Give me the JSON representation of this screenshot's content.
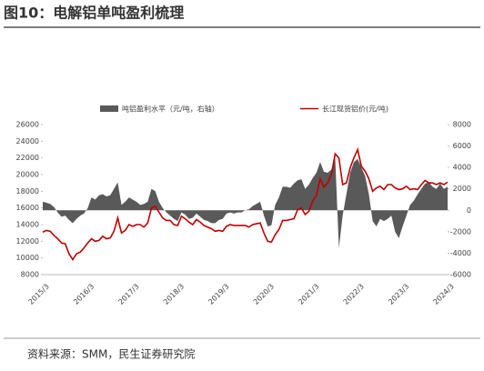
{
  "header": {
    "title": "图10：电解铝单吨盈利梳理"
  },
  "chart_data": {
    "type": "dual-area-line",
    "categories": [
      "2015/3",
      null,
      null,
      null,
      null,
      null,
      null,
      null,
      null,
      null,
      null,
      null,
      "2016/3",
      null,
      null,
      null,
      null,
      null,
      null,
      null,
      null,
      null,
      null,
      null,
      "2017/3",
      null,
      null,
      null,
      null,
      null,
      null,
      null,
      null,
      null,
      null,
      null,
      "2018/3",
      null,
      null,
      null,
      null,
      null,
      null,
      null,
      null,
      null,
      null,
      null,
      "2019/3",
      null,
      null,
      null,
      null,
      null,
      null,
      null,
      null,
      null,
      null,
      null,
      "2020/3",
      null,
      null,
      null,
      null,
      null,
      null,
      null,
      null,
      null,
      null,
      null,
      "2021/3",
      null,
      null,
      null,
      null,
      null,
      null,
      null,
      null,
      null,
      null,
      null,
      "2022/3",
      null,
      null,
      null,
      null,
      null,
      null,
      null,
      null,
      null,
      null,
      null,
      "2023/3",
      null,
      null,
      null,
      null,
      null,
      null,
      null,
      null,
      null,
      null,
      null,
      "2024/3"
    ],
    "series": [
      {
        "name": "吨铝盈利水平（元/吨，右轴）",
        "type": "area",
        "axis": "y2",
        "color": "#595959",
        "values": [
          800,
          700,
          600,
          300,
          -200,
          -600,
          -500,
          -900,
          -1200,
          -800,
          -500,
          -300,
          200,
          1200,
          1000,
          1400,
          1500,
          1300,
          1400,
          2000,
          2600,
          500,
          800,
          1200,
          1000,
          800,
          500,
          600,
          800,
          2000,
          1800,
          800,
          200,
          -200,
          -500,
          -800,
          -1000,
          -200,
          -400,
          -800,
          -700,
          -300,
          -600,
          -900,
          -1000,
          -1200,
          -1200,
          -900,
          -800,
          -300,
          -200,
          -300,
          -200,
          -200,
          0,
          100,
          400,
          600,
          800,
          -500,
          -1500,
          -1400,
          500,
          1200,
          2200,
          2200,
          2100,
          2500,
          2800,
          2900,
          2000,
          2400,
          3000,
          3500,
          4500,
          3600,
          3500,
          3800,
          5000,
          -3500,
          -500,
          1500,
          3500,
          4500,
          4800,
          4000,
          3200,
          1500,
          -1000,
          -1500,
          -800,
          -1000,
          -800,
          -500,
          -2000,
          -2600,
          -1500,
          -500,
          500,
          900,
          1500,
          2000,
          2500,
          2600,
          2200,
          2000,
          2500,
          2000,
          2200
        ]
      },
      {
        "name": "长江现货铝价(元/吨)",
        "type": "line",
        "color": "#c00000",
        "values": [
          13100,
          13300,
          13200,
          12700,
          12300,
          11800,
          11700,
          10500,
          9800,
          10500,
          10700,
          11200,
          11800,
          12300,
          12000,
          12100,
          12600,
          12300,
          12400,
          13200,
          14800,
          13000,
          13300,
          14000,
          13800,
          14000,
          14000,
          13700,
          14200,
          16000,
          16200,
          15500,
          14800,
          14500,
          14500,
          14000,
          13900,
          15000,
          14700,
          14300,
          14000,
          14600,
          14300,
          13900,
          13700,
          13500,
          13200,
          13300,
          13200,
          13800,
          14000,
          13900,
          13900,
          13900,
          13900,
          13700,
          14000,
          14100,
          14200,
          13000,
          12000,
          11900,
          12800,
          13400,
          14500,
          14500,
          14600,
          14700,
          15800,
          16000,
          15200,
          15600,
          16800,
          17500,
          19500,
          18500,
          19000,
          20000,
          22500,
          22000,
          18800,
          19000,
          20800,
          22000,
          23000,
          21000,
          20400,
          19500,
          18000,
          18400,
          18600,
          18200,
          18800,
          18800,
          18400,
          18200,
          18300,
          18600,
          18200,
          18300,
          18200,
          18800,
          19300,
          19000,
          19000,
          18800,
          19000,
          18800,
          19100
        ]
      }
    ],
    "ylim": [
      8000,
      26000
    ],
    "yticks": [
      8000,
      10000,
      12000,
      14000,
      16000,
      18000,
      20000,
      22000,
      24000,
      26000
    ],
    "y2lim": [
      -6000,
      8000
    ],
    "y2ticks": [
      -6000,
      -4000,
      -2000,
      0,
      2000,
      4000,
      6000,
      8000
    ],
    "legend": "top"
  },
  "footer": {
    "source": "资料来源：SMM，民生证券研究院"
  }
}
